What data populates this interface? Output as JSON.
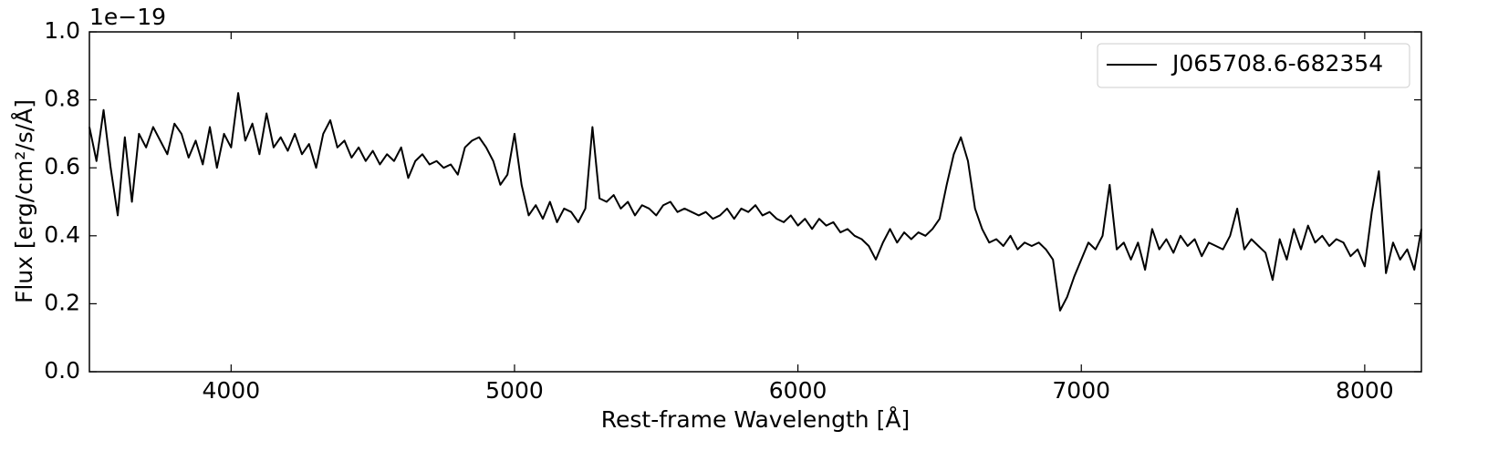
{
  "chart_data": {
    "type": "line",
    "xlabel": "Rest-frame Wavelength [Å]",
    "ylabel": "Flux [erg/cm²/s/Å]",
    "y_offset_label": "1e−19",
    "xlim": [
      3500,
      8200
    ],
    "xticks": [
      4000,
      5000,
      6000,
      7000,
      8000
    ],
    "ylim": [
      0,
      1
    ],
    "yticks": [
      {
        "value": 0,
        "label": "0.0"
      },
      0.2,
      0.4,
      0.6,
      0.8,
      {
        "value": 1,
        "label": "1.0"
      }
    ],
    "grid": false,
    "legend": "upper right",
    "x": [
      3500,
      3525,
      3550,
      3575,
      3600,
      3625,
      3650,
      3675,
      3700,
      3725,
      3750,
      3775,
      3800,
      3825,
      3850,
      3875,
      3900,
      3925,
      3950,
      3975,
      4000,
      4025,
      4050,
      4075,
      4100,
      4125,
      4150,
      4175,
      4200,
      4225,
      4250,
      4275,
      4300,
      4325,
      4350,
      4375,
      4400,
      4425,
      4450,
      4475,
      4500,
      4525,
      4550,
      4575,
      4600,
      4625,
      4650,
      4675,
      4700,
      4725,
      4750,
      4775,
      4800,
      4825,
      4850,
      4875,
      4900,
      4925,
      4950,
      4975,
      5000,
      5025,
      5050,
      5075,
      5100,
      5125,
      5150,
      5175,
      5200,
      5225,
      5250,
      5275,
      5300,
      5325,
      5350,
      5375,
      5400,
      5425,
      5450,
      5475,
      5500,
      5525,
      5550,
      5575,
      5600,
      5625,
      5650,
      5675,
      5700,
      5725,
      5750,
      5775,
      5800,
      5825,
      5850,
      5875,
      5900,
      5925,
      5950,
      5975,
      6000,
      6025,
      6050,
      6075,
      6100,
      6125,
      6150,
      6175,
      6200,
      6225,
      6250,
      6275,
      6300,
      6325,
      6350,
      6375,
      6400,
      6425,
      6450,
      6475,
      6500,
      6525,
      6550,
      6575,
      6600,
      6625,
      6650,
      6675,
      6700,
      6725,
      6750,
      6775,
      6800,
      6825,
      6850,
      6875,
      6900,
      6925,
      6950,
      6975,
      7000,
      7025,
      7050,
      7075,
      7100,
      7125,
      7150,
      7175,
      7200,
      7225,
      7250,
      7275,
      7300,
      7325,
      7350,
      7375,
      7400,
      7425,
      7450,
      7475,
      7500,
      7525,
      7550,
      7575,
      7600,
      7625,
      7650,
      7675,
      7700,
      7725,
      7750,
      7775,
      7800,
      7825,
      7850,
      7875,
      7900,
      7925,
      7950,
      7975,
      8000,
      8025,
      8050,
      8075,
      8100,
      8125,
      8150,
      8175,
      8200
    ],
    "series": [
      {
        "name": "J065708.6-682354",
        "color": "#000000",
        "values": [
          0.72,
          0.62,
          0.77,
          0.6,
          0.46,
          0.69,
          0.5,
          0.7,
          0.66,
          0.72,
          0.68,
          0.64,
          0.73,
          0.7,
          0.63,
          0.68,
          0.61,
          0.72,
          0.6,
          0.7,
          0.66,
          0.82,
          0.68,
          0.73,
          0.64,
          0.76,
          0.66,
          0.69,
          0.65,
          0.7,
          0.64,
          0.67,
          0.6,
          0.7,
          0.74,
          0.66,
          0.68,
          0.63,
          0.66,
          0.62,
          0.65,
          0.61,
          0.64,
          0.62,
          0.66,
          0.57,
          0.62,
          0.64,
          0.61,
          0.62,
          0.6,
          0.61,
          0.58,
          0.66,
          0.68,
          0.69,
          0.66,
          0.62,
          0.55,
          0.58,
          0.7,
          0.55,
          0.46,
          0.49,
          0.45,
          0.5,
          0.44,
          0.48,
          0.47,
          0.44,
          0.48,
          0.72,
          0.51,
          0.5,
          0.52,
          0.48,
          0.5,
          0.46,
          0.49,
          0.48,
          0.46,
          0.49,
          0.5,
          0.47,
          0.48,
          0.47,
          0.46,
          0.47,
          0.45,
          0.46,
          0.48,
          0.45,
          0.48,
          0.47,
          0.49,
          0.46,
          0.47,
          0.45,
          0.44,
          0.46,
          0.43,
          0.45,
          0.42,
          0.45,
          0.43,
          0.44,
          0.41,
          0.42,
          0.4,
          0.39,
          0.37,
          0.33,
          0.38,
          0.42,
          0.38,
          0.41,
          0.39,
          0.41,
          0.4,
          0.42,
          0.45,
          0.55,
          0.64,
          0.69,
          0.62,
          0.48,
          0.42,
          0.38,
          0.39,
          0.37,
          0.4,
          0.36,
          0.38,
          0.37,
          0.38,
          0.36,
          0.33,
          0.18,
          0.22,
          0.28,
          0.33,
          0.38,
          0.36,
          0.4,
          0.55,
          0.36,
          0.38,
          0.33,
          0.38,
          0.3,
          0.42,
          0.36,
          0.39,
          0.35,
          0.4,
          0.37,
          0.39,
          0.34,
          0.38,
          0.37,
          0.36,
          0.4,
          0.48,
          0.36,
          0.39,
          0.37,
          0.35,
          0.27,
          0.39,
          0.33,
          0.42,
          0.36,
          0.43,
          0.38,
          0.4,
          0.37,
          0.39,
          0.38,
          0.34,
          0.36,
          0.31,
          0.47,
          0.59,
          0.29,
          0.38,
          0.33,
          0.36,
          0.3,
          0.42
        ]
      }
    ]
  }
}
